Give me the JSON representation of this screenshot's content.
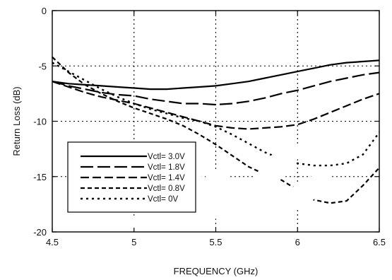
{
  "chart_data": {
    "type": "line",
    "title": "",
    "xlabel": "FREQUENCY (GHz)",
    "ylabel": "Return Loss (dB)",
    "xlim": [
      4.5,
      6.5
    ],
    "ylim": [
      -20,
      0
    ],
    "x_ticks": [
      4.5,
      5,
      5.5,
      6,
      6.5
    ],
    "x_tick_labels": [
      "4.5",
      "5",
      "5.5",
      "6",
      "6.5"
    ],
    "y_ticks": [
      0,
      -5,
      -10,
      -15,
      -20
    ],
    "y_tick_labels": [
      "0",
      "-5",
      "-10",
      "-15",
      "-20"
    ],
    "grid": "dotted",
    "legend_position": "lower-left",
    "watermark_color": "#ffffff",
    "series": [
      {
        "name": "Vctl= 3.0V",
        "style": "solid",
        "x": [
          4.5,
          4.6,
          4.7,
          4.8,
          4.9,
          5.0,
          5.1,
          5.2,
          5.3,
          5.4,
          5.5,
          5.6,
          5.7,
          5.8,
          5.9,
          6.0,
          6.1,
          6.2,
          6.3,
          6.4,
          6.5
        ],
        "y": [
          -6.4,
          -6.6,
          -6.7,
          -6.8,
          -6.9,
          -7.0,
          -7.1,
          -7.1,
          -7.0,
          -6.9,
          -6.8,
          -6.6,
          -6.4,
          -6.1,
          -5.8,
          -5.5,
          -5.2,
          -4.9,
          -4.7,
          -4.6,
          -4.5
        ]
      },
      {
        "name": "Vctl= 1.8V",
        "style": "long-dash",
        "x": [
          4.5,
          4.6,
          4.7,
          4.8,
          4.9,
          5.0,
          5.1,
          5.2,
          5.3,
          5.4,
          5.5,
          5.6,
          5.7,
          5.8,
          5.9,
          6.0,
          6.1,
          6.2,
          6.3,
          6.4,
          6.5
        ],
        "y": [
          -6.4,
          -6.8,
          -7.1,
          -7.4,
          -7.6,
          -7.7,
          -8.0,
          -8.2,
          -8.4,
          -8.4,
          -8.5,
          -8.4,
          -8.2,
          -7.9,
          -7.5,
          -7.2,
          -6.8,
          -6.4,
          -6.1,
          -5.8,
          -5.6
        ]
      },
      {
        "name": "Vctl= 1.4V",
        "style": "dash",
        "x": [
          4.5,
          4.6,
          4.7,
          4.8,
          4.9,
          5.0,
          5.1,
          5.2,
          5.3,
          5.4,
          5.5,
          5.6,
          5.7,
          5.8,
          5.9,
          6.0,
          6.1,
          6.2,
          6.3,
          6.4,
          6.5
        ],
        "y": [
          -6.4,
          -6.9,
          -7.4,
          -7.8,
          -8.1,
          -8.4,
          -8.8,
          -9.2,
          -9.6,
          -10.0,
          -10.4,
          -10.6,
          -10.7,
          -10.6,
          -10.5,
          -10.3,
          -9.8,
          -9.2,
          -8.6,
          -8.0,
          -7.5
        ]
      },
      {
        "name": "Vctl= 0.8V",
        "style": "short-dash",
        "x": [
          4.5,
          4.6,
          4.7,
          4.8,
          4.9,
          5.0,
          5.1,
          5.2,
          5.3,
          5.4,
          5.5,
          5.6,
          5.7,
          5.8,
          5.9,
          6.0,
          6.1,
          6.2,
          6.3,
          6.4,
          6.5
        ],
        "y": [
          -4.2,
          -5.6,
          -6.7,
          -7.5,
          -8.2,
          -8.8,
          -9.3,
          -9.8,
          -10.4,
          -11.2,
          -12.1,
          -13.1,
          -14.1,
          -14.8,
          -15.3,
          -16.2,
          -17.1,
          -17.4,
          -17.2,
          -15.8,
          -14.2
        ]
      },
      {
        "name": "Vctl= 0V",
        "style": "dotted",
        "x": [
          4.5,
          4.6,
          4.7,
          4.8,
          4.9,
          5.0,
          5.1,
          5.2,
          5.3,
          5.4,
          5.5,
          5.6,
          5.7,
          5.8,
          5.9,
          6.0,
          6.1,
          6.2,
          6.3,
          6.4,
          6.5
        ],
        "y": [
          -4.7,
          -5.5,
          -6.3,
          -7.1,
          -7.8,
          -8.4,
          -8.9,
          -9.3,
          -9.7,
          -10.0,
          -10.5,
          -11.2,
          -12.0,
          -12.8,
          -13.4,
          -13.8,
          -14.0,
          -14.0,
          -13.8,
          -13.0,
          -11.0
        ]
      }
    ]
  }
}
